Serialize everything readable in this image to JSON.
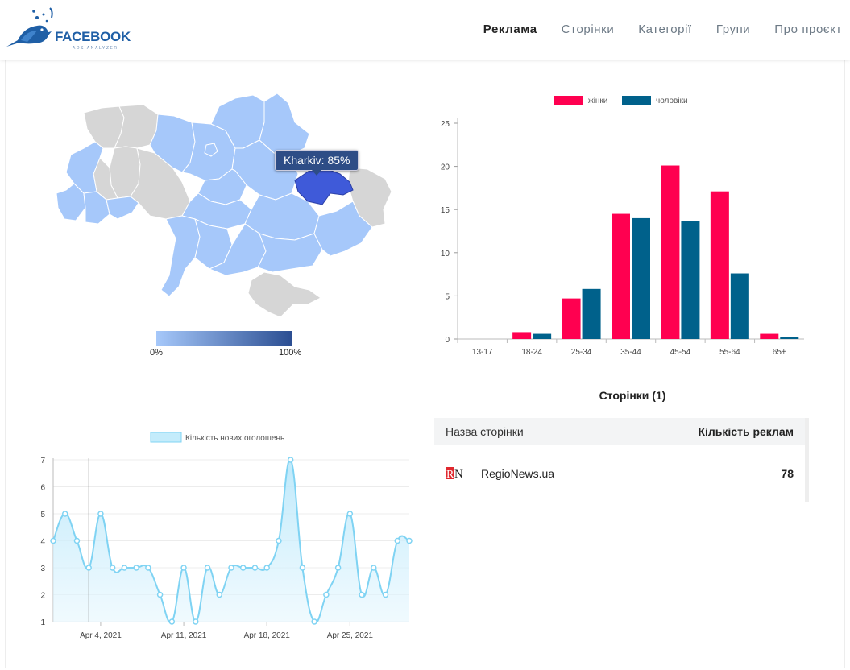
{
  "header": {
    "logo_title": "FACEBOOK",
    "logo_subtitle": "ADS ANALYZER",
    "nav": [
      {
        "label": "Реклама",
        "active": true
      },
      {
        "label": "Сторінки",
        "active": false
      },
      {
        "label": "Категорії",
        "active": false
      },
      {
        "label": "Групи",
        "active": false
      },
      {
        "label": "Про проєкт",
        "active": false
      }
    ]
  },
  "map": {
    "tooltip": "Kharkiv: 85%",
    "scale_min": "0%",
    "scale_max": "100%",
    "colors": {
      "low": "#a6c8fa",
      "high": "#2b4e92",
      "highlight": "#3f5ad9",
      "no_data": "#d6d6d6"
    }
  },
  "chart_data": [
    {
      "type": "bar",
      "categories": [
        "13-17",
        "18-24",
        "25-34",
        "35-44",
        "45-54",
        "55-64",
        "65+"
      ],
      "series": [
        {
          "name": "жінки",
          "color": "#ff0050",
          "values": [
            0,
            0.8,
            4.7,
            14.5,
            20.1,
            17.1,
            0.6
          ]
        },
        {
          "name": "чоловіки",
          "color": "#00618b",
          "values": [
            0,
            0.6,
            5.8,
            14.0,
            13.7,
            7.6,
            0.2
          ]
        }
      ],
      "yticks": [
        0,
        5,
        10,
        15,
        20,
        25
      ],
      "ylim": [
        0,
        25
      ],
      "legend": "top"
    },
    {
      "type": "area",
      "series": [
        {
          "name": "Кількість нових оголошень",
          "color": "#7fd3f3",
          "x": [
            "2021-03-31",
            "2021-04-01",
            "2021-04-02",
            "2021-04-03",
            "2021-04-04",
            "2021-04-05",
            "2021-04-06",
            "2021-04-07",
            "2021-04-08",
            "2021-04-09",
            "2021-04-10",
            "2021-04-11",
            "2021-04-12",
            "2021-04-13",
            "2021-04-14",
            "2021-04-15",
            "2021-04-16",
            "2021-04-17",
            "2021-04-18",
            "2021-04-19",
            "2021-04-20",
            "2021-04-21",
            "2021-04-22",
            "2021-04-23",
            "2021-04-24",
            "2021-04-25",
            "2021-04-26",
            "2021-04-27",
            "2021-04-28",
            "2021-04-29",
            "2021-04-30"
          ],
          "values": [
            4,
            5,
            4,
            3,
            5,
            3,
            3,
            3,
            3,
            2,
            1,
            3,
            1,
            3,
            2,
            3,
            3,
            3,
            3,
            4,
            7,
            3,
            1,
            2,
            3,
            5,
            2,
            3,
            2,
            4,
            4
          ]
        }
      ],
      "xtick_labels": [
        "Apr 4, 2021",
        "Apr 11, 2021",
        "Apr 18, 2021",
        "Apr 25, 2021"
      ],
      "yticks": [
        1,
        2,
        3,
        4,
        5,
        6,
        7
      ],
      "ylim": [
        1,
        7
      ],
      "legend": "top"
    }
  ],
  "pages_table": {
    "title": "Сторінки (1)",
    "col_name": "Назва сторінки",
    "col_count": "Кількість реклам",
    "rows": [
      {
        "name": "RegioNews.ua",
        "count": "78",
        "logo_text": "RN"
      }
    ]
  }
}
